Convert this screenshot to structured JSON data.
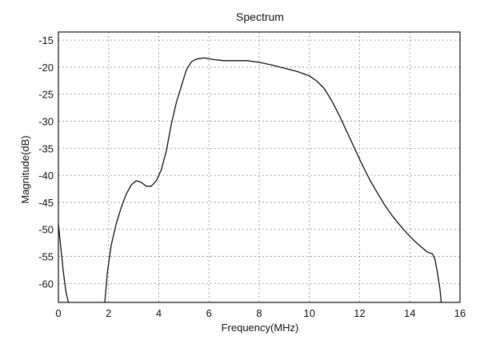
{
  "chart_data": {
    "type": "line",
    "title": "Spectrum",
    "xlabel": "Frequency(MHz)",
    "ylabel": "Magnitude(dB)",
    "xlim": [
      0,
      16
    ],
    "ylim": [
      -63.5,
      -13.5
    ],
    "grid": true,
    "legend": "none",
    "xticks": [
      0,
      2,
      4,
      6,
      8,
      10,
      12,
      14,
      16
    ],
    "yticks": [
      -15,
      -20,
      -25,
      -30,
      -35,
      -40,
      -45,
      -50,
      -55,
      -60
    ],
    "series": [
      {
        "color": "#111111",
        "segments": [
          [
            [
              0,
              -49
            ],
            [
              0.1,
              -53.5
            ],
            [
              0.2,
              -58
            ],
            [
              0.3,
              -61.5
            ],
            [
              0.4,
              -63.5
            ]
          ],
          [
            [
              1.85,
              -63.5
            ],
            [
              1.95,
              -58
            ],
            [
              2.1,
              -53
            ],
            [
              2.3,
              -49
            ],
            [
              2.5,
              -46
            ],
            [
              2.7,
              -43.5
            ],
            [
              2.9,
              -41.8
            ],
            [
              3.1,
              -41.0
            ],
            [
              3.3,
              -41.3
            ],
            [
              3.5,
              -42.0
            ],
            [
              3.7,
              -42.0
            ],
            [
              3.9,
              -41.0
            ],
            [
              4.1,
              -39.0
            ],
            [
              4.3,
              -35.5
            ],
            [
              4.5,
              -30.5
            ],
            [
              4.7,
              -26.5
            ],
            [
              4.9,
              -23.5
            ],
            [
              5.1,
              -20.5
            ],
            [
              5.3,
              -19.0
            ],
            [
              5.5,
              -18.5
            ],
            [
              5.8,
              -18.3
            ],
            [
              6.2,
              -18.6
            ],
            [
              6.6,
              -18.8
            ],
            [
              7.0,
              -18.8
            ],
            [
              7.5,
              -18.8
            ],
            [
              8.0,
              -19.1
            ],
            [
              8.5,
              -19.6
            ],
            [
              9.0,
              -20.2
            ],
            [
              9.5,
              -20.8
            ],
            [
              10.0,
              -21.6
            ],
            [
              10.3,
              -22.6
            ],
            [
              10.6,
              -24.0
            ],
            [
              10.9,
              -26.3
            ],
            [
              11.2,
              -29.0
            ],
            [
              11.5,
              -32.0
            ],
            [
              11.8,
              -35.0
            ],
            [
              12.1,
              -38.0
            ],
            [
              12.4,
              -40.8
            ],
            [
              12.7,
              -43.2
            ],
            [
              13.0,
              -45.5
            ],
            [
              13.3,
              -47.5
            ],
            [
              13.6,
              -49.2
            ],
            [
              13.9,
              -50.8
            ],
            [
              14.2,
              -52.2
            ],
            [
              14.5,
              -53.4
            ],
            [
              14.7,
              -54.2
            ],
            [
              14.9,
              -54.5
            ],
            [
              15.0,
              -55.5
            ],
            [
              15.1,
              -58.0
            ],
            [
              15.2,
              -61.0
            ],
            [
              15.25,
              -63.5
            ]
          ]
        ]
      }
    ]
  }
}
